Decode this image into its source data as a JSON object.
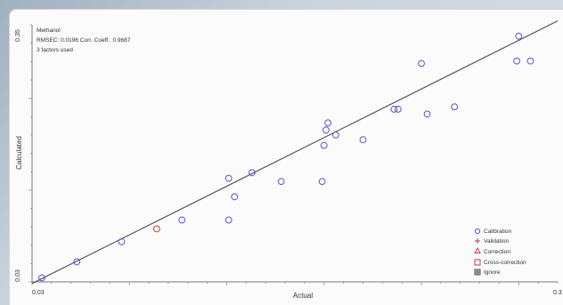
{
  "chart_data": {
    "type": "scatter",
    "title": "",
    "annotation": [
      "Methanol",
      "RMSEC: 0.0196   Corr. Coeff.: 0.9687",
      "3 factors used"
    ],
    "xlabel": "Actual",
    "ylabel": "Calculated",
    "x_tick_labels": [
      "0.03",
      "0.3"
    ],
    "y_tick_labels": [
      "0.03",
      "0.35"
    ],
    "xlim": [
      0.03,
      0.3
    ],
    "ylim": [
      0.03,
      0.35
    ],
    "grid": false,
    "legend_position": "bottom-right",
    "regression_line": [
      [
        0.03,
        0.028
      ],
      [
        0.3,
        0.355
      ]
    ],
    "legend": [
      {
        "label": "Calibration",
        "marker": "circle",
        "color": "#5555cc"
      },
      {
        "label": "Validation",
        "marker": "plus",
        "color": "#aa3388"
      },
      {
        "label": "Correction",
        "marker": "triangle",
        "color": "#cc3366"
      },
      {
        "label": "Cross-correction",
        "marker": "square",
        "color": "#cc3366"
      },
      {
        "label": "Ignore",
        "marker": "hatched-square",
        "color": "#555555"
      }
    ],
    "series": [
      {
        "name": "Calibration",
        "color": "#5555cc",
        "points": [
          [
            0.035,
            0.035
          ],
          [
            0.053,
            0.055
          ],
          [
            0.076,
            0.08
          ],
          [
            0.107,
            0.107
          ],
          [
            0.131,
            0.107
          ],
          [
            0.131,
            0.159
          ],
          [
            0.134,
            0.136
          ],
          [
            0.143,
            0.166
          ],
          [
            0.158,
            0.155
          ],
          [
            0.179,
            0.155
          ],
          [
            0.18,
            0.2
          ],
          [
            0.181,
            0.219
          ],
          [
            0.182,
            0.228
          ],
          [
            0.186,
            0.213
          ],
          [
            0.2,
            0.207
          ],
          [
            0.216,
            0.245
          ],
          [
            0.218,
            0.245
          ],
          [
            0.23,
            0.302
          ],
          [
            0.233,
            0.239
          ],
          [
            0.247,
            0.248
          ],
          [
            0.279,
            0.305
          ],
          [
            0.28,
            0.336
          ],
          [
            0.286,
            0.305
          ]
        ]
      },
      {
        "name": "Validation",
        "color": "#cc3333",
        "points": [
          [
            0.094,
            0.096
          ]
        ]
      }
    ]
  }
}
